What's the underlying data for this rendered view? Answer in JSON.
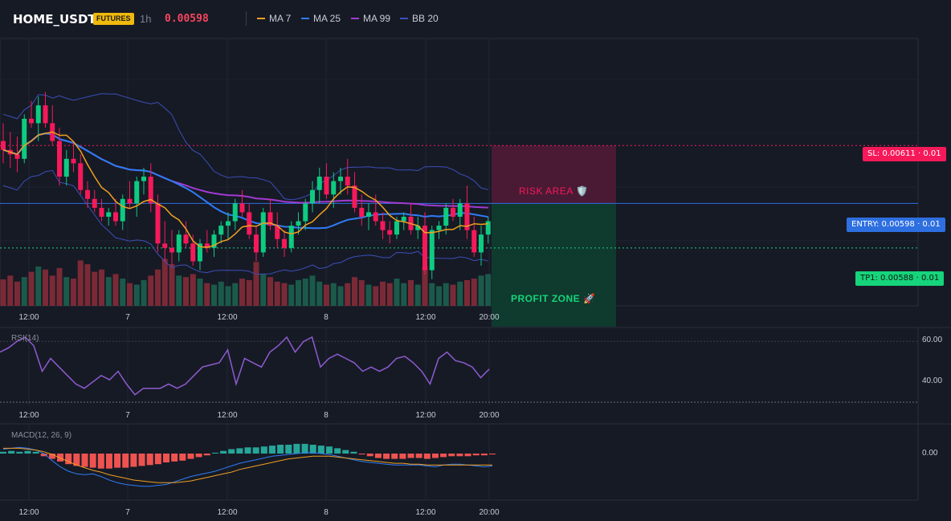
{
  "header": {
    "symbol": "HOME_USDT",
    "badge": "FUTURES",
    "timeframe": "1h",
    "price": "0.00598",
    "legend": [
      {
        "label": "MA 7",
        "color": "#f0a020"
      },
      {
        "label": "MA 25",
        "color": "#2f7cf6"
      },
      {
        "label": "MA 99",
        "color": "#a23ad4"
      },
      {
        "label": "BB 20",
        "color": "#3b4fb8"
      }
    ]
  },
  "levels": {
    "sl_label": "SL: 0.00611 · 0.01",
    "entry_label": "ENTRY: 0.00598 · 0.01",
    "tp_label": "TP1: 0.00588 · 0.01",
    "risk_label": "RISK AREA 🛡️",
    "profit_label": "PROFIT ZONE 🚀"
  },
  "panels": {
    "rsi_label": "RSI(14)",
    "macd_label": "MACD(12, 26, 9)",
    "rsi_ticks": [
      "60.00",
      "40.00"
    ],
    "macd_tick": "0.00"
  },
  "chart_data": [
    {
      "type": "candlestick",
      "x_tick_labels": [
        "12:00",
        "7",
        "12:00",
        "8",
        "12:00",
        "20:00"
      ],
      "colors": {
        "up": "#0ecb81",
        "down": "#f6195a",
        "ma7": "#f0a020",
        "ma25": "#2f7cf6",
        "ma99": "#a23ad4",
        "bb": "#3b4fb8"
      },
      "candles": [
        [
          0.00612,
          0.00616,
          0.00607,
          0.0061
        ],
        [
          0.0061,
          0.00614,
          0.00606,
          0.00609
        ],
        [
          0.00609,
          0.00613,
          0.00605,
          0.00608
        ],
        [
          0.00608,
          0.00618,
          0.00607,
          0.00617
        ],
        [
          0.00617,
          0.00621,
          0.00615,
          0.00616
        ],
        [
          0.00616,
          0.00622,
          0.00612,
          0.0062
        ],
        [
          0.0062,
          0.00623,
          0.00615,
          0.00616
        ],
        [
          0.00616,
          0.0062,
          0.00611,
          0.00612
        ],
        [
          0.00612,
          0.00615,
          0.00602,
          0.00604
        ],
        [
          0.00604,
          0.0061,
          0.00602,
          0.00608
        ],
        [
          0.00608,
          0.00612,
          0.00605,
          0.00607
        ],
        [
          0.00607,
          0.00609,
          0.006,
          0.00601
        ],
        [
          0.00601,
          0.00603,
          0.00597,
          0.00599
        ],
        [
          0.00599,
          0.00601,
          0.00596,
          0.00597
        ],
        [
          0.00597,
          0.00599,
          0.00594,
          0.00595
        ],
        [
          0.00595,
          0.00597,
          0.00593,
          0.00596
        ],
        [
          0.00596,
          0.00599,
          0.00593,
          0.00594
        ],
        [
          0.00594,
          0.006,
          0.00592,
          0.00599
        ],
        [
          0.00599,
          0.00603,
          0.00597,
          0.00598
        ],
        [
          0.00598,
          0.00604,
          0.00595,
          0.00603
        ],
        [
          0.00603,
          0.00606,
          0.006,
          0.00604
        ],
        [
          0.00604,
          0.00607,
          0.00596,
          0.00598
        ],
        [
          0.00598,
          0.006,
          0.00587,
          0.00589
        ],
        [
          0.00589,
          0.00594,
          0.00585,
          0.00588
        ],
        [
          0.00588,
          0.00592,
          0.00584,
          0.00587
        ],
        [
          0.00587,
          0.00592,
          0.00585,
          0.00591
        ],
        [
          0.00591,
          0.00594,
          0.00588,
          0.00589
        ],
        [
          0.00589,
          0.00591,
          0.00584,
          0.00585
        ],
        [
          0.00585,
          0.0059,
          0.00583,
          0.00589
        ],
        [
          0.00589,
          0.00592,
          0.00587,
          0.00588
        ],
        [
          0.00588,
          0.00592,
          0.00586,
          0.00591
        ],
        [
          0.00591,
          0.00594,
          0.00589,
          0.00593
        ],
        [
          0.00593,
          0.00596,
          0.0059,
          0.00594
        ],
        [
          0.00594,
          0.00599,
          0.00592,
          0.00598
        ],
        [
          0.00598,
          0.00601,
          0.00595,
          0.00596
        ],
        [
          0.00596,
          0.00598,
          0.0059,
          0.00591
        ],
        [
          0.00591,
          0.00593,
          0.00585,
          0.00587
        ],
        [
          0.00587,
          0.00597,
          0.00586,
          0.00596
        ],
        [
          0.00596,
          0.00599,
          0.00592,
          0.00593
        ],
        [
          0.00593,
          0.00596,
          0.00588,
          0.0059
        ],
        [
          0.0059,
          0.00592,
          0.00586,
          0.00588
        ],
        [
          0.00588,
          0.00594,
          0.00587,
          0.00593
        ],
        [
          0.00593,
          0.00596,
          0.00591,
          0.00594
        ],
        [
          0.00594,
          0.00599,
          0.00592,
          0.00598
        ],
        [
          0.00598,
          0.00603,
          0.00596,
          0.00601
        ],
        [
          0.00601,
          0.00606,
          0.00598,
          0.00604
        ],
        [
          0.00604,
          0.00607,
          0.00599,
          0.006
        ],
        [
          0.006,
          0.00605,
          0.00597,
          0.00603
        ],
        [
          0.00603,
          0.00606,
          0.006,
          0.00604
        ],
        [
          0.00604,
          0.00608,
          0.006,
          0.00602
        ],
        [
          0.00602,
          0.00605,
          0.00596,
          0.00597
        ],
        [
          0.00597,
          0.006,
          0.00593,
          0.00595
        ],
        [
          0.00595,
          0.00598,
          0.00592,
          0.00596
        ],
        [
          0.00596,
          0.006,
          0.00593,
          0.00594
        ],
        [
          0.00594,
          0.00596,
          0.0059,
          0.00592
        ],
        [
          0.00592,
          0.00594,
          0.00589,
          0.00591
        ],
        [
          0.00591,
          0.00595,
          0.0059,
          0.00594
        ],
        [
          0.00594,
          0.00596,
          0.00592,
          0.00595
        ],
        [
          0.00595,
          0.00598,
          0.00591,
          0.00592
        ],
        [
          0.00592,
          0.00595,
          0.0059,
          0.00593
        ],
        [
          0.00593,
          0.00596,
          0.00582,
          0.00583
        ],
        [
          0.00583,
          0.00593,
          0.00581,
          0.00592
        ],
        [
          0.00592,
          0.00594,
          0.0059,
          0.00593
        ],
        [
          0.00593,
          0.00598,
          0.00591,
          0.00597
        ],
        [
          0.00597,
          0.00599,
          0.00594,
          0.00595
        ],
        [
          0.00595,
          0.00599,
          0.00592,
          0.00598
        ],
        [
          0.00598,
          0.00602,
          0.0059,
          0.00592
        ],
        [
          0.00592,
          0.00595,
          0.00586,
          0.00587
        ],
        [
          0.00587,
          0.00593,
          0.00584,
          0.00591
        ],
        [
          0.00591,
          0.00595,
          0.00589,
          0.00594
        ]
      ],
      "volume": [
        35,
        40,
        32,
        38,
        45,
        52,
        48,
        40,
        50,
        38,
        36,
        60,
        55,
        45,
        48,
        38,
        42,
        36,
        30,
        28,
        34,
        40,
        48,
        62,
        55,
        40,
        38,
        42,
        36,
        30,
        28,
        32,
        26,
        30,
        36,
        34,
        58,
        42,
        38,
        32,
        30,
        28,
        34,
        36,
        40,
        32,
        28,
        30,
        26,
        30,
        38,
        34,
        28,
        26,
        32,
        30,
        36,
        30,
        34,
        28,
        52,
        30,
        26,
        30,
        28,
        32,
        34,
        36,
        40,
        42
      ]
    },
    {
      "type": "line",
      "name": "RSI(14)",
      "ylim": [
        30,
        65
      ],
      "values": [
        55,
        57,
        60,
        62,
        58,
        46,
        52,
        48,
        44,
        40,
        38,
        41,
        44,
        42,
        46,
        40,
        35,
        38,
        38,
        38,
        40,
        38,
        40,
        44,
        48,
        49,
        50,
        56,
        40,
        52,
        50,
        48,
        55,
        58,
        62,
        55,
        60,
        62,
        48,
        52,
        54,
        52,
        50,
        46,
        48,
        46,
        48,
        52,
        53,
        50,
        46,
        40,
        52,
        55,
        51,
        50,
        48,
        43,
        47
      ]
    },
    {
      "type": "bar",
      "name": "MACD(12, 26, 9)",
      "histogram": [
        0.2,
        0.3,
        0.2,
        0.3,
        0.2,
        -0.3,
        -0.6,
        -0.9,
        -1.2,
        -1.4,
        -1.5,
        -1.6,
        -1.7,
        -1.7,
        -1.6,
        -1.6,
        -1.5,
        -1.4,
        -1.3,
        -1.2,
        -1.0,
        -0.9,
        -0.8,
        -0.6,
        -0.4,
        -0.2,
        0.1,
        0.3,
        0.5,
        0.6,
        0.7,
        0.7,
        0.8,
        0.9,
        1.0,
        1.0,
        1.1,
        1.1,
        1.0,
        0.9,
        0.8,
        0.6,
        0.4,
        0.2,
        -0.1,
        -0.3,
        -0.5,
        -0.6,
        -0.6,
        -0.6,
        -0.5,
        -0.5,
        -0.6,
        -0.5,
        -0.4,
        -0.3,
        -0.3,
        -0.3,
        -0.2,
        -0.2,
        -0.1
      ],
      "macd_line": [
        0.5,
        0.6,
        0.7,
        0.6,
        0.4,
        0.0,
        -0.8,
        -1.5,
        -2.0,
        -2.3,
        -2.4,
        -2.3,
        -2.6,
        -3.0,
        -3.3,
        -3.5,
        -3.6,
        -3.7,
        -3.7,
        -3.6,
        -3.5,
        -3.2,
        -2.9,
        -2.6,
        -2.4,
        -2.2,
        -2.0,
        -1.7,
        -1.4,
        -1.1,
        -0.9,
        -0.7,
        -0.5,
        -0.3,
        -0.2,
        -0.1,
        0.0,
        0.1,
        0.1,
        0.0,
        -0.1,
        -0.3,
        -0.5,
        -0.7,
        -0.9,
        -1.0,
        -1.1,
        -1.2,
        -1.3,
        -1.3,
        -1.3,
        -1.3,
        -1.4,
        -1.5,
        -1.3,
        -1.2,
        -1.2,
        -1.3,
        -1.4,
        -1.5,
        -1.4
      ],
      "signal_line": [
        0.6,
        0.6,
        0.6,
        0.5,
        0.4,
        0.2,
        -0.1,
        -0.5,
        -0.9,
        -1.3,
        -1.6,
        -1.9,
        -2.1,
        -2.4,
        -2.6,
        -2.8,
        -3.0,
        -3.1,
        -3.2,
        -3.3,
        -3.3,
        -3.3,
        -3.2,
        -3.1,
        -2.9,
        -2.7,
        -2.5,
        -2.3,
        -2.1,
        -1.8,
        -1.6,
        -1.4,
        -1.2,
        -1.0,
        -0.8,
        -0.6,
        -0.5,
        -0.4,
        -0.3,
        -0.3,
        -0.3,
        -0.4,
        -0.5,
        -0.6,
        -0.7,
        -0.8,
        -0.9,
        -1.0,
        -1.1,
        -1.1,
        -1.2,
        -1.2,
        -1.3,
        -1.3,
        -1.3,
        -1.3,
        -1.3,
        -1.3,
        -1.3,
        -1.3,
        -1.3
      ]
    }
  ]
}
